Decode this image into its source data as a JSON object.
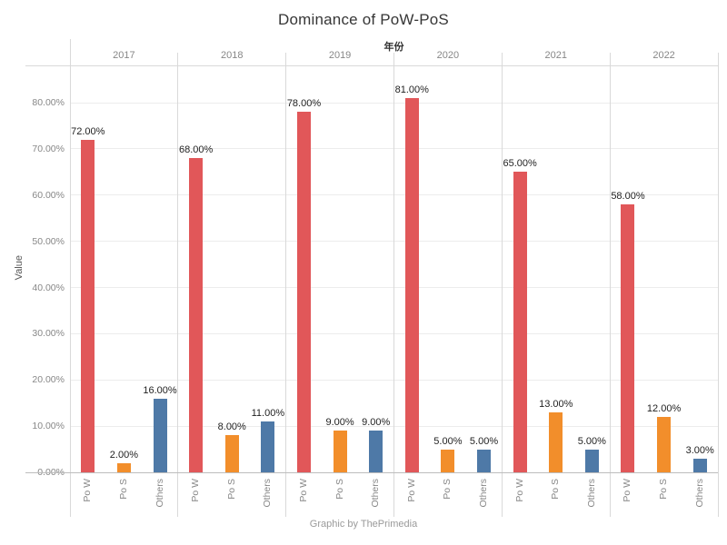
{
  "title": "Dominance of PoW-PoS",
  "top_axis_label": "年份",
  "ylabel": "Value",
  "caption": "Graphic by ThePrimedia",
  "chart_data": {
    "type": "bar",
    "title": "Dominance of PoW-PoS",
    "facet_axis_label": "年份",
    "xlabel": "",
    "ylabel": "Value",
    "caption": "Graphic by ThePrimedia",
    "groups": [
      "2017",
      "2018",
      "2019",
      "2020",
      "2021",
      "2022"
    ],
    "categories": [
      "Po W",
      "Po S",
      "Others"
    ],
    "series": [
      {
        "group": "2017",
        "values": [
          72,
          2,
          16
        ],
        "labels": [
          "72.00%",
          "2.00%",
          "16.00%"
        ]
      },
      {
        "group": "2018",
        "values": [
          68,
          8,
          11
        ],
        "labels": [
          "68.00%",
          "8.00%",
          "11.00%"
        ]
      },
      {
        "group": "2019",
        "values": [
          78,
          9,
          9
        ],
        "labels": [
          "78.00%",
          "9.00%",
          "9.00%"
        ]
      },
      {
        "group": "2020",
        "values": [
          81,
          5,
          5
        ],
        "labels": [
          "81.00%",
          "5.00%",
          "5.00%"
        ]
      },
      {
        "group": "2021",
        "values": [
          65,
          13,
          5
        ],
        "labels": [
          "65.00%",
          "13.00%",
          "5.00%"
        ]
      },
      {
        "group": "2022",
        "values": [
          58,
          12,
          3
        ],
        "labels": [
          "58.00%",
          "12.00%",
          "3.00%"
        ]
      }
    ],
    "category_colors": {
      "Po W": "#e15759",
      "Po S": "#f28e2b",
      "Others": "#4e79a7"
    },
    "y_ticks": [
      "0.00%",
      "10.00%",
      "20.00%",
      "30.00%",
      "40.00%",
      "50.00%",
      "60.00%",
      "70.00%",
      "80.00%"
    ],
    "y_tick_values": [
      0,
      10,
      20,
      30,
      40,
      50,
      60,
      70,
      80
    ],
    "ylim": [
      0,
      88
    ],
    "grid": true,
    "legend": "none"
  }
}
